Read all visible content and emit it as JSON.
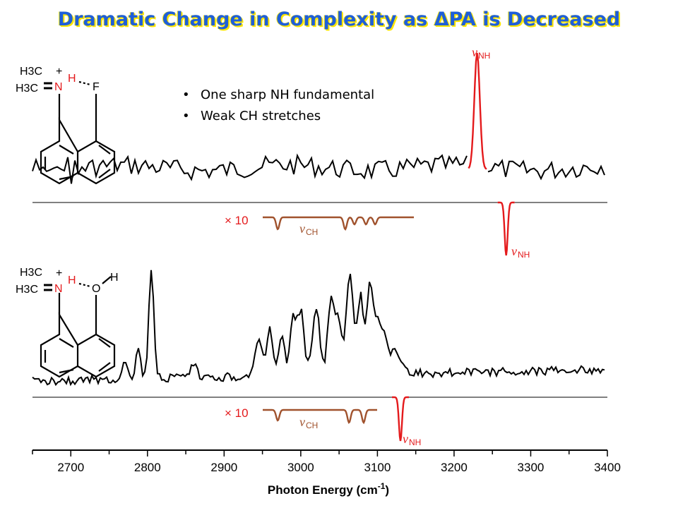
{
  "title": "Dramatic Change in Complexity as ΔPA is Decreased",
  "bullets": [
    "One sharp NH fundamental",
    "Weak CH stretches"
  ],
  "colors": {
    "title": "#1f5fd8",
    "title_shadow": "#ffe600",
    "experiment": "#000000",
    "nh_band": "#e41a1c",
    "ch_trace": "#a0522d",
    "baseline": "#808080"
  },
  "labels": {
    "scale_factor": "× 10",
    "nu": "ν",
    "nh_sub": "NH",
    "ch_sub": "CH"
  },
  "molecules": {
    "top": {
      "me1": "H3C",
      "me2": "H3C",
      "charge": "+",
      "n": "N",
      "h": "H",
      "acceptor": "F"
    },
    "bottom": {
      "me1": "H3C",
      "me2": "H3C",
      "charge": "+",
      "n": "N",
      "h": "H",
      "acceptor": "O",
      "oh": "H"
    }
  },
  "chart_data": {
    "type": "line",
    "xlabel": "Photon Energy (cm-1)",
    "xlim": [
      2650,
      3400
    ],
    "xticks": [
      2700,
      2800,
      2900,
      3000,
      3100,
      3200,
      3300,
      3400
    ],
    "panels": [
      {
        "name": "top",
        "experimental_peaks": [
          {
            "x": 3230,
            "label": "νNH"
          }
        ],
        "calculated": {
          "nh_band": 3268,
          "ch_bands": [
            2970,
            3058,
            3070,
            3085,
            3097
          ],
          "ch_scale": "× 10"
        }
      },
      {
        "name": "bottom",
        "experimental_peaks": [
          {
            "x": 2805
          },
          {
            "x": 3064
          },
          {
            "x": 3090
          }
        ],
        "calculated": {
          "nh_band": 3130,
          "ch_bands": [
            2970,
            3063,
            3082
          ],
          "ch_scale": "× 10"
        }
      }
    ]
  }
}
